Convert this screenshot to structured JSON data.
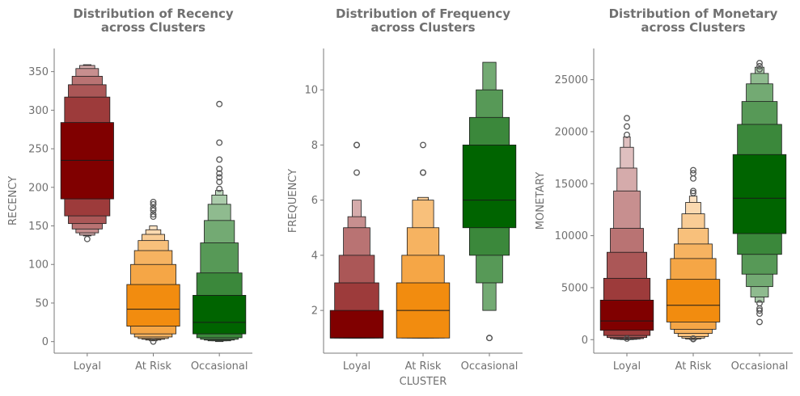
{
  "colors": {
    "Loyal": "#800000",
    "At Risk": "#f28c0f",
    "Occasional": "#006400",
    "text": "#707070",
    "axis": "#7a7a7a"
  },
  "chart_data": [
    {
      "type": "boxen",
      "title_line1": "Distribution of Recency",
      "title_line2": "across Clusters",
      "xlabel": "",
      "ylabel": "RECENCY",
      "categories": [
        "Loyal",
        "At Risk",
        "Occasional"
      ],
      "ylim": [
        -15,
        380
      ],
      "yticks": [
        0,
        50,
        100,
        150,
        200,
        250,
        300,
        350
      ],
      "groups": [
        {
          "category": "Loyal",
          "median": 235,
          "levels": [
            [
              185,
              284
            ],
            [
              163,
              317
            ],
            [
              153,
              333
            ],
            [
              146,
              344
            ],
            [
              141,
              354
            ],
            [
              138,
              358
            ],
            [
              137,
              359
            ]
          ],
          "outliers": [
            133
          ]
        },
        {
          "category": "At Risk",
          "median": 42,
          "levels": [
            [
              20,
              74
            ],
            [
              10,
              100
            ],
            [
              6,
              118
            ],
            [
              4,
              131
            ],
            [
              3,
              139
            ],
            [
              2,
              145
            ],
            [
              1,
              150
            ]
          ],
          "outliers": [
            162,
            165,
            170,
            173,
            178,
            181,
            0
          ]
        },
        {
          "category": "Occasional",
          "median": 25,
          "levels": [
            [
              10,
              60
            ],
            [
              5,
              89
            ],
            [
              3,
              128
            ],
            [
              2,
              157
            ],
            [
              1,
              178
            ],
            [
              1,
              190
            ],
            [
              0,
              196
            ]
          ],
          "outliers": [
            198,
            207,
            213,
            218,
            224,
            236,
            258,
            308
          ]
        }
      ]
    },
    {
      "type": "boxen",
      "title_line1": "Distribution of Frequency",
      "title_line2": "across Clusters",
      "xlabel": "CLUSTER",
      "ylabel": "FREQUENCY",
      "categories": [
        "Loyal",
        "At Risk",
        "Occasional"
      ],
      "ylim": [
        0.45,
        11.5
      ],
      "yticks": [
        2,
        4,
        6,
        8,
        10
      ],
      "groups": [
        {
          "category": "Loyal",
          "median": 1,
          "levels": [
            [
              1,
              2
            ],
            [
              1,
              3
            ],
            [
              1,
              4
            ],
            [
              1,
              5
            ],
            [
              1,
              5.4
            ],
            [
              1,
              6
            ]
          ],
          "outliers": [
            7,
            8,
            8
          ]
        },
        {
          "category": "At Risk",
          "median": 2,
          "levels": [
            [
              1,
              3
            ],
            [
              1,
              4
            ],
            [
              1,
              5
            ],
            [
              1,
              6
            ],
            [
              1,
              6.1
            ]
          ],
          "outliers": [
            7,
            7,
            8
          ]
        },
        {
          "category": "Occasional",
          "median": 6,
          "levels": [
            [
              5,
              8
            ],
            [
              4,
              9
            ],
            [
              3,
              10
            ],
            [
              2,
              11
            ]
          ],
          "outliers": [
            1,
            1
          ]
        }
      ]
    },
    {
      "type": "boxen",
      "title_line1": "Distribution of Monetary",
      "title_line2": "across Clusters",
      "xlabel": "",
      "ylabel": "MONETARY",
      "categories": [
        "Loyal",
        "At Risk",
        "Occasional"
      ],
      "ylim": [
        -1300,
        28000
      ],
      "yticks": [
        0,
        5000,
        10000,
        15000,
        20000,
        25000
      ],
      "groups": [
        {
          "category": "Loyal",
          "median": 1800,
          "levels": [
            [
              900,
              3800
            ],
            [
              400,
              5900
            ],
            [
              200,
              8400
            ],
            [
              100,
              10700
            ],
            [
              60,
              14300
            ],
            [
              30,
              16500
            ],
            [
              10,
              18500
            ],
            [
              0,
              19500
            ]
          ],
          "outliers": [
            19700,
            20500,
            21300,
            100
          ]
        },
        {
          "category": "At Risk",
          "median": 3300,
          "levels": [
            [
              1700,
              5800
            ],
            [
              1000,
              7800
            ],
            [
              600,
              9200
            ],
            [
              300,
              10700
            ],
            [
              150,
              12100
            ],
            [
              60,
              13200
            ],
            [
              20,
              13800
            ]
          ],
          "outliers": [
            14100,
            14300,
            15500,
            16000,
            16300,
            100,
            50
          ]
        },
        {
          "category": "Occasional",
          "median": 13600,
          "levels": [
            [
              10200,
              17800
            ],
            [
              8200,
              20700
            ],
            [
              6300,
              22900
            ],
            [
              5100,
              24600
            ],
            [
              4100,
              25600
            ],
            [
              3600,
              26200
            ]
          ],
          "outliers": [
            3500,
            3000,
            2800,
            2500,
            1700,
            26000,
            26300,
            26600
          ]
        }
      ]
    }
  ]
}
